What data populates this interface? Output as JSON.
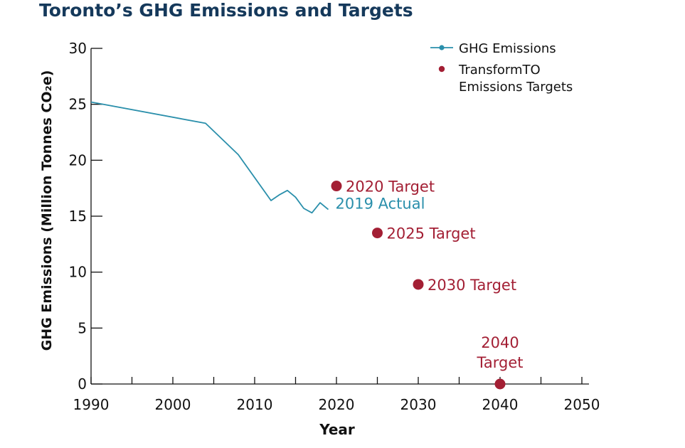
{
  "title": "Toronto’s GHG Emissions and Targets",
  "colors": {
    "title": "#15395b",
    "emissions": "#2a8fab",
    "targets": "#a31f34",
    "axis": "#111111",
    "text": "#111111"
  },
  "chart_data": {
    "type": "line",
    "xlabel": "Year",
    "ylabel": "GHG Emissions (Million Tonnes CO₂e)",
    "xlim": [
      1990,
      2050
    ],
    "ylim": [
      0,
      30
    ],
    "xticks": [
      1990,
      2000,
      2010,
      2020,
      2030,
      2040,
      2050
    ],
    "yticks": [
      0,
      5,
      10,
      15,
      20,
      25,
      30
    ],
    "grid": false,
    "legend_position": "top-right",
    "legend": [
      {
        "label": "GHG Emissions",
        "marker": "line-dot",
        "color": "#2a8fab"
      },
      {
        "label": "TransformTO Emissions Targets",
        "lines": [
          "TransformTO",
          "Emissions Targets"
        ],
        "marker": "dot",
        "color": "#a31f34"
      }
    ],
    "series": [
      {
        "name": "GHG Emissions",
        "color": "#2a8fab",
        "x": [
          1990,
          2004,
          2008,
          2012,
          2013,
          2014,
          2015,
          2016,
          2017,
          2018,
          2019
        ],
        "y": [
          25.2,
          23.3,
          20.5,
          16.4,
          16.9,
          17.3,
          16.7,
          15.7,
          15.3,
          16.2,
          15.6
        ]
      },
      {
        "name": "TransformTO Emissions Targets",
        "color": "#a31f34",
        "type": "scatter",
        "x": [
          2020,
          2025,
          2030,
          2040
        ],
        "y": [
          17.7,
          13.5,
          8.9,
          0
        ]
      }
    ],
    "annotations": [
      {
        "text": "2019 Actual",
        "x": 2019,
        "y": 15.6,
        "color": "#2a8fab"
      },
      {
        "text": "2020 Target",
        "x": 2020,
        "y": 17.7,
        "color": "#a31f34"
      },
      {
        "text": "2025 Target",
        "x": 2025,
        "y": 13.5,
        "color": "#a31f34"
      },
      {
        "text": "2030 Target",
        "x": 2030,
        "y": 8.9,
        "color": "#a31f34"
      },
      {
        "text": "2040 Target",
        "lines": [
          "2040",
          "Target"
        ],
        "x": 2040,
        "y": 0,
        "color": "#a31f34"
      }
    ]
  }
}
